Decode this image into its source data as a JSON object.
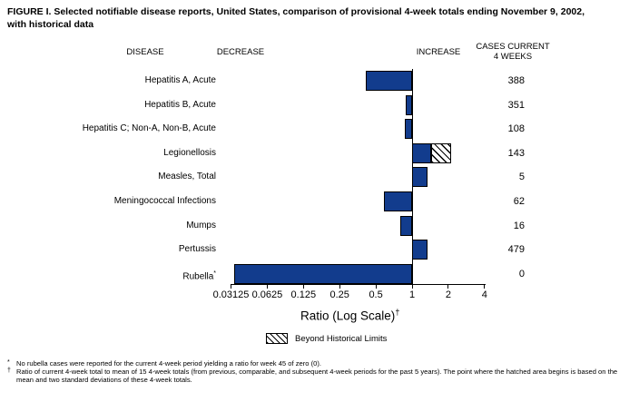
{
  "figure": {
    "title_line1": "FIGURE I. Selected notifiable disease reports, United States, comparison of provisional 4-week totals ending November 9, 2002,",
    "title_line2": "with historical data",
    "col_disease": "DISEASE",
    "col_decrease": "DECREASE",
    "col_increase": "INCREASE",
    "col_cases_line1": "CASES CURRENT",
    "col_cases_line2": "4 WEEKS"
  },
  "legend": {
    "beyond_label": "Beyond Historical Limits"
  },
  "footnotes": [
    {
      "marker": "*",
      "text": "No rubella cases were reported for the current 4-week period yielding a ratio for week 45 of zero (0)."
    },
    {
      "marker": "†",
      "text": "Ratio of current 4-week total to mean of 15 4-week totals (from previous, comparable, and subsequent 4-week periods for the past 5 years). The point where the hatched area begins is based on the mean and two standard deviations of these 4-week totals."
    }
  ],
  "chart_data": {
    "type": "bar",
    "orientation": "horizontal",
    "x_scale": "log2",
    "baseline_ratio": 1,
    "xlabel": "Ratio (Log Scale)",
    "xlabel_marker": "†",
    "x_ticks": [
      "0.03125",
      "0.0625",
      "0.125",
      "0.25",
      "0.5",
      "1",
      "2",
      "4"
    ],
    "x_range": [
      0.03125,
      4
    ],
    "bar_color": "#123c8d",
    "beyond_limits_style": "hatched",
    "rows": [
      {
        "disease": "Hepatitis A, Acute",
        "cases_current_4_weeks": "388",
        "ratio": 0.41
      },
      {
        "disease": "Hepatitis B, Acute",
        "cases_current_4_weeks": "351",
        "ratio": 0.88
      },
      {
        "disease": "Hepatitis C; Non-A, Non-B, Acute",
        "cases_current_4_weeks": "108",
        "ratio": 0.87
      },
      {
        "disease": "Legionellosis",
        "cases_current_4_weeks": "143",
        "ratio": 1.44,
        "beyond_limits_to": 2.12
      },
      {
        "disease": "Measles, Total",
        "cases_current_4_weeks": "5",
        "ratio": 1.34
      },
      {
        "disease": "Meningococcal Infections",
        "cases_current_4_weeks": "62",
        "ratio": 0.58
      },
      {
        "disease": "Mumps",
        "cases_current_4_weeks": "16",
        "ratio": 0.8
      },
      {
        "disease": "Pertussis",
        "cases_current_4_weeks": "479",
        "ratio": 1.34
      },
      {
        "disease": "Rubella",
        "cases_current_4_weeks": "0",
        "ratio": 0,
        "bar_drawn_to": 0.033,
        "footnote_marker": "*"
      }
    ]
  }
}
